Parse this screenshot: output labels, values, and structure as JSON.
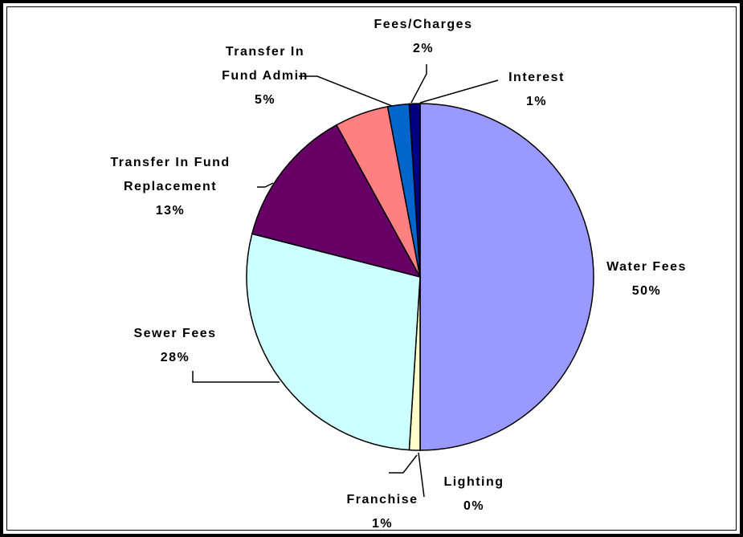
{
  "chart_data": {
    "type": "pie",
    "categories": [
      "Water Fees",
      "Lighting",
      "Franchise",
      "Sewer Fees",
      "Transfer In Fund Replacement",
      "Transfer In Fund Admin",
      "Fees/Charges",
      "Interest"
    ],
    "values": [
      50,
      0,
      1,
      28,
      13,
      5,
      2,
      1
    ],
    "value_labels": [
      "50%",
      "0%",
      "1%",
      "28%",
      "13%",
      "5%",
      "2%",
      "1%"
    ],
    "colors": [
      "#9999ff",
      "#ccffff",
      "#ffffcc",
      "#ccffff",
      "#660066",
      "#ff8080",
      "#0066cc",
      "#000080"
    ]
  }
}
